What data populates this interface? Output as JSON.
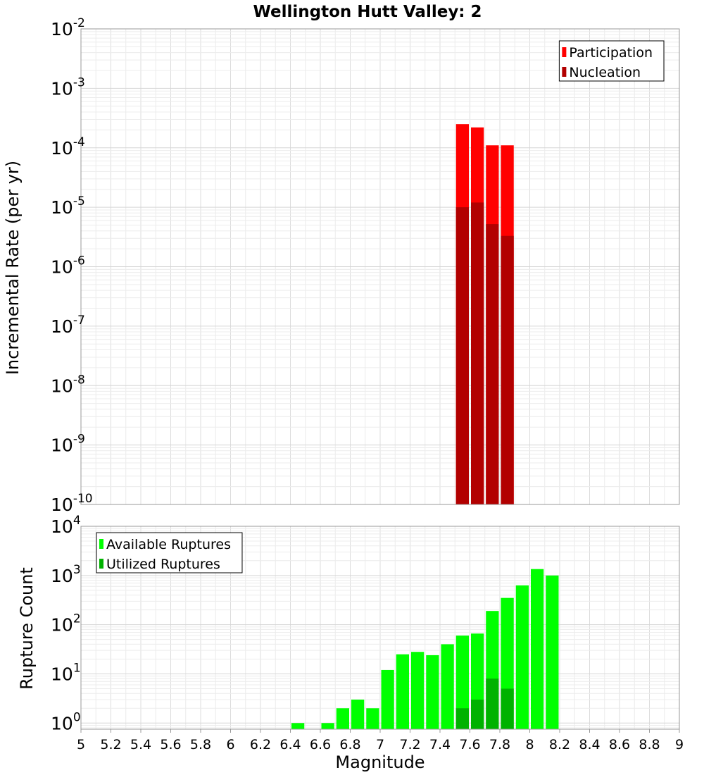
{
  "title": "Wellington Hutt Valley: 2",
  "chart_data": [
    {
      "type": "bar",
      "ylabel": "Incremental Rate (per yr)",
      "yscale": "log",
      "ylim": [
        1e-10,
        0.01
      ],
      "xlim": [
        5,
        9
      ],
      "y_tick_exponents": [
        -10,
        -9,
        -8,
        -7,
        -6,
        -5,
        -4,
        -3,
        -2
      ],
      "bar_width": 0.1,
      "legend_position": "top-right",
      "grid": true,
      "series": [
        {
          "name": "Participation",
          "color": "#ff0000",
          "x": [
            7.55,
            7.65,
            7.75,
            7.85
          ],
          "values": [
            0.00025,
            0.00022,
            0.00011,
            0.00011
          ]
        },
        {
          "name": "Nucleation",
          "color": "#b20000",
          "x": [
            7.55,
            7.65,
            7.75,
            7.85
          ],
          "values": [
            1e-05,
            1.2e-05,
            5.2e-06,
            3.3e-06
          ]
        }
      ]
    },
    {
      "type": "bar",
      "xlabel": "Magnitude",
      "ylabel": "Rupture Count",
      "yscale": "log",
      "ylim": [
        0.75,
        10000
      ],
      "xlim": [
        5,
        9
      ],
      "x_ticks": [
        "5",
        "5.2",
        "5.4",
        "5.6",
        "5.8",
        "6",
        "6.2",
        "6.4",
        "6.6",
        "6.8",
        "7",
        "7.2",
        "7.4",
        "7.6",
        "7.8",
        "8",
        "8.2",
        "8.4",
        "8.6",
        "8.8",
        "9"
      ],
      "y_tick_exponents": [
        0,
        1,
        2,
        3,
        4
      ],
      "bar_width": 0.1,
      "legend_position": "top-left",
      "grid": true,
      "series": [
        {
          "name": "Available Ruptures",
          "color": "#00ff00",
          "x": [
            6.45,
            6.65,
            6.75,
            6.85,
            6.95,
            7.05,
            7.15,
            7.25,
            7.35,
            7.45,
            7.55,
            7.65,
            7.75,
            7.85,
            7.95,
            8.05,
            8.15
          ],
          "values": [
            1,
            1,
            2,
            3,
            2,
            12,
            25,
            28,
            24,
            40,
            60,
            66,
            190,
            350,
            630,
            1350,
            1000
          ]
        },
        {
          "name": "Utilized Ruptures",
          "color": "#00b200",
          "x": [
            7.55,
            7.65,
            7.75,
            7.85
          ],
          "values": [
            2,
            3,
            8,
            5
          ]
        }
      ]
    }
  ]
}
